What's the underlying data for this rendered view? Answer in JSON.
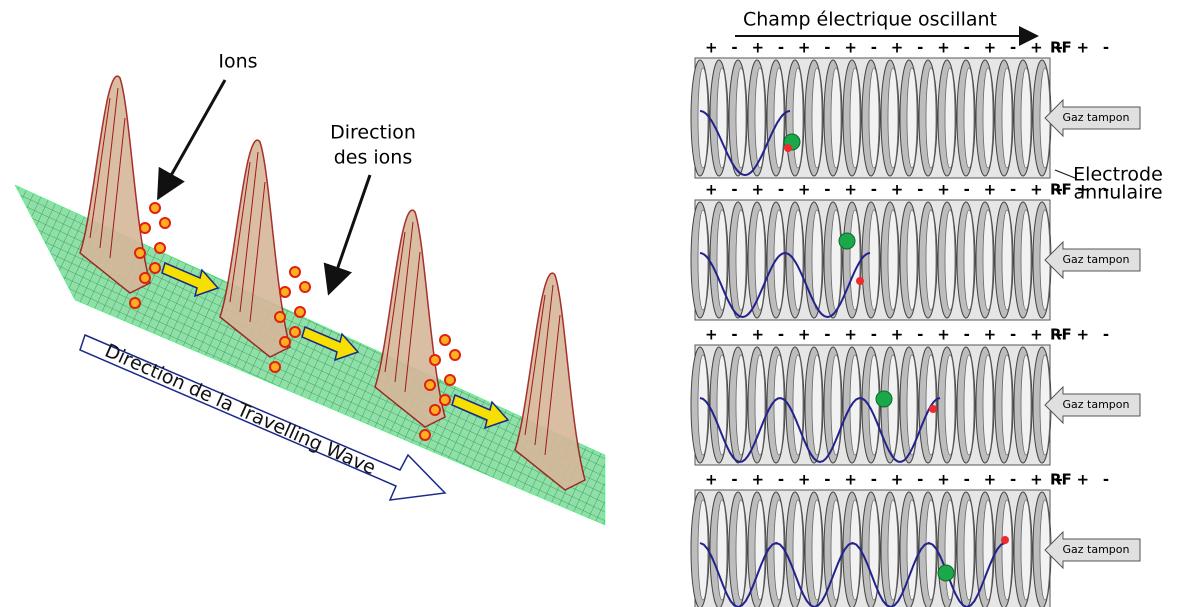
{
  "left_panel": {
    "ions_label": "Ions",
    "ion_direction_label": [
      "Direction",
      "des ions"
    ],
    "wave_direction_label": "Direction de la Travelling Wave"
  },
  "right_panel": {
    "title": "Champ électrique oscillant",
    "electrode_label": [
      "Electrode",
      "annulaire"
    ],
    "panels": [
      {
        "signs": "+ - + - + - + - + - + - + - + - + -",
        "rf": "RF",
        "gas": "Gaz tampon"
      },
      {
        "signs": "+ - + - + - + - + - + - + - + - + -",
        "rf": "RF",
        "gas": "Gaz tampon"
      },
      {
        "signs": "+ - + - + - + - + - + - + - + - + -",
        "rf": "RF",
        "gas": "Gaz tampon"
      },
      {
        "signs": "+ - + - + - + - + - + - + - + - + -",
        "rf": "RF",
        "gas": "Gaz tampon"
      }
    ]
  }
}
